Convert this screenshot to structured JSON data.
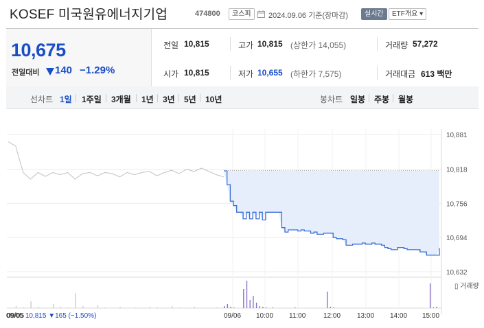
{
  "header": {
    "title": "KOSEF 미국원유에너지기업",
    "code": "474800",
    "market_badge": "코스피",
    "date_text": "2024.09.06 기준(장마감)",
    "realtime_badge": "실시간",
    "etf_badge": "ETF개요 ▾"
  },
  "summary": {
    "current_price": "10,675",
    "change_label": "전일대비",
    "change_value": "140",
    "change_percent": "−1.29%",
    "prev_close_label": "전일",
    "prev_close": "10,815",
    "high_label": "고가",
    "high": "10,815",
    "upper_limit": "(상한가 14,055)",
    "volume_label": "거래량",
    "volume": "57,272",
    "open_label": "시가",
    "open": "10,815",
    "low_label": "저가",
    "low": "10,655",
    "lower_limit": "(하한가 7,575)",
    "amount_label": "거래대금",
    "amount": "613 백만"
  },
  "tabs": {
    "line_title": "선차트",
    "line_items": [
      "1일",
      "1주일",
      "3개월",
      "1년",
      "3년",
      "5년",
      "10년"
    ],
    "candle_title": "봉차트",
    "candle_items": [
      "일봉",
      "주봉",
      "월봉"
    ]
  },
  "chart_labels": {
    "y_ticks": [
      "10,881",
      "10,818",
      "10,756",
      "10,694",
      "10,632"
    ],
    "x_ticks": [
      "09/05",
      "09/06",
      "10:00",
      "11:00",
      "12:00",
      "13:00",
      "14:00",
      "15:00"
    ],
    "volume_legend": "거래량",
    "prev_day_label": "09/05",
    "prev_day_price": "10,815",
    "prev_day_change": "▼165 (−1.50%)"
  },
  "chart_data": {
    "type": "line",
    "ylim": [
      10632,
      10881
    ],
    "baseline": 10815,
    "prev_day_series": [
      10868,
      10860,
      10812,
      10800,
      10812,
      10805,
      10812,
      10808,
      10812,
      10800,
      10810,
      10812,
      10806,
      10812,
      10810,
      10804,
      10812,
      10808,
      10812,
      10814,
      10806,
      10812,
      10816,
      10810,
      10818,
      10814,
      10820,
      10814,
      10808,
      10804
    ],
    "today_series": [
      10815,
      10790,
      10760,
      10752,
      10740,
      10740,
      10728,
      10740,
      10728,
      10740,
      10728,
      10740,
      10726,
      10740,
      10740,
      10740,
      10740,
      10740,
      10712,
      10704,
      10708,
      10708,
      10708,
      10706,
      10708,
      10706,
      10706,
      10702,
      10704,
      10700,
      10700,
      10702,
      10702,
      10702,
      10694,
      10692,
      10692,
      10690,
      10680,
      10680,
      10682,
      10682,
      10682,
      10684,
      10682,
      10682,
      10684,
      10682,
      10682,
      10680,
      10676,
      10674,
      10672,
      10672,
      10676,
      10676,
      10674,
      10672,
      10672,
      10672,
      10672,
      10668,
      10668,
      10662,
      10662,
      10662,
      10662,
      10675
    ],
    "prev_volume": [
      0,
      3,
      1,
      10,
      2,
      0,
      6,
      2,
      1,
      22,
      3,
      0,
      4,
      1,
      0,
      2,
      0,
      1,
      0,
      2,
      1,
      0,
      3,
      1,
      0,
      2,
      0,
      0,
      1,
      0
    ],
    "today_volume": [
      3,
      6,
      2,
      1,
      0,
      0,
      28,
      40,
      12,
      18,
      8,
      3,
      2,
      1,
      0,
      1,
      0,
      0,
      0,
      0,
      0,
      0,
      1,
      0,
      0,
      0,
      0,
      0,
      0,
      0,
      0,
      0,
      24,
      2,
      1,
      0,
      0,
      0,
      0,
      0,
      0,
      0,
      0,
      0,
      0,
      0,
      0,
      0,
      0,
      0,
      0,
      0,
      0,
      0,
      0,
      0,
      0,
      0,
      0,
      0,
      0,
      0,
      0,
      0,
      36,
      1,
      2,
      0
    ]
  },
  "colors": {
    "accent": "#1a4ec7",
    "fall": "#1a4ec7",
    "line_today": "#3a6fd8",
    "fill_today": "#e6eefb",
    "line_prev": "#c0c0c0",
    "vol_today": "#8b6fc9",
    "vol_prev": "#c4c4c4"
  }
}
